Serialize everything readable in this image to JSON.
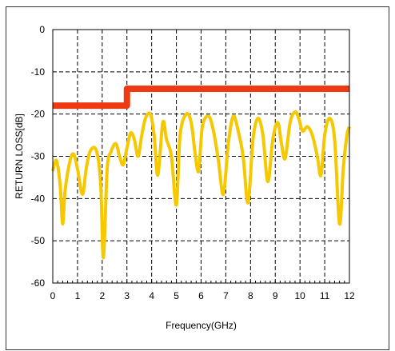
{
  "chart_data": {
    "type": "line",
    "xlabel": "Frequency(GHz)",
    "ylabel": "RETURN LOSS[dB]",
    "xlim": [
      0,
      12
    ],
    "ylim": [
      -60,
      0
    ],
    "x_ticks": [
      "0",
      "1",
      "2",
      "3",
      "4",
      "5",
      "6",
      "7",
      "8",
      "9",
      "10",
      "11",
      "12"
    ],
    "y_ticks": [
      "0",
      "-10",
      "-20",
      "-30",
      "-40",
      "-50",
      "-60"
    ],
    "grid": "dashed vertical and horizontal",
    "series": [
      {
        "color": "#ee3a12",
        "style": "step",
        "x": [
          0,
          3,
          3,
          12
        ],
        "y": [
          -18,
          -18,
          -14,
          -14
        ]
      },
      {
        "color": "#f5c800",
        "style": "smooth",
        "x": [
          0,
          0.15,
          0.3,
          0.4,
          0.5,
          0.7,
          0.85,
          1.0,
          1.2,
          1.35,
          1.5,
          1.7,
          1.85,
          1.95,
          2.05,
          2.2,
          2.35,
          2.55,
          2.7,
          2.85,
          3.0,
          3.15,
          3.3,
          3.45,
          3.6,
          3.75,
          3.95,
          4.1,
          4.25,
          4.45,
          4.6,
          4.8,
          5.0,
          5.15,
          5.4,
          5.6,
          5.75,
          5.9,
          6.05,
          6.3,
          6.5,
          6.7,
          6.9,
          7.1,
          7.3,
          7.5,
          7.7,
          7.9,
          8.1,
          8.3,
          8.5,
          8.7,
          8.9,
          9.1,
          9.25,
          9.4,
          9.6,
          9.8,
          9.95,
          10.1,
          10.3,
          10.5,
          10.7,
          10.85,
          11.0,
          11.2,
          11.4,
          11.6,
          11.75,
          11.9,
          12.0
        ],
        "y": [
          -33.5,
          -31,
          -37,
          -46,
          -38,
          -31,
          -29.5,
          -33,
          -39,
          -33,
          -29,
          -28,
          -31,
          -38,
          -54,
          -33,
          -29,
          -27,
          -30,
          -32,
          -28,
          -24.5,
          -26,
          -30,
          -25,
          -21,
          -20,
          -25,
          -34.5,
          -22,
          -26,
          -30,
          -41.5,
          -25,
          -20,
          -22,
          -29,
          -33.5,
          -23,
          -20.5,
          -24,
          -31,
          -39,
          -27,
          -20.5,
          -24,
          -30,
          -41,
          -26,
          -21,
          -25,
          -36,
          -26,
          -22,
          -27,
          -30.5,
          -22,
          -19.5,
          -21,
          -24,
          -23,
          -25,
          -30,
          -34.5,
          -25,
          -21,
          -26,
          -46,
          -33,
          -25,
          -23
        ]
      }
    ]
  }
}
